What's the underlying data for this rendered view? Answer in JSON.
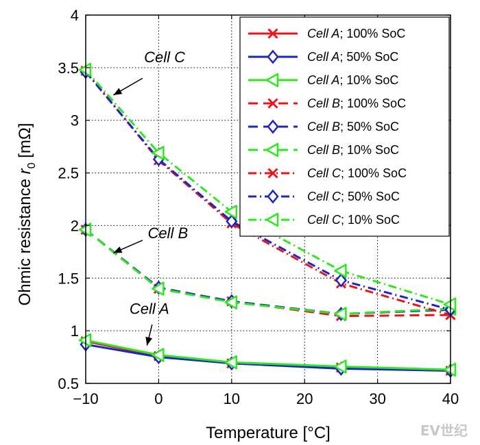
{
  "chart_data": {
    "type": "line",
    "xlabel": "Temperature [°C]",
    "ylabel_main": "Ohmic resistance ",
    "ylabel_var": "r",
    "ylabel_sub": "0",
    "ylabel_unit": " [mΩ]",
    "xlim": [
      -10,
      40
    ],
    "ylim": [
      0.5,
      4
    ],
    "grid": true,
    "x_ticks": [
      -10,
      0,
      10,
      20,
      30,
      40
    ],
    "x_tick_labels": [
      "−10",
      "0",
      "10",
      "20",
      "30",
      "40"
    ],
    "y_ticks": [
      0.5,
      1,
      1.5,
      2,
      2.5,
      3,
      3.5,
      4
    ],
    "y_tick_labels": [
      "0.5",
      "1",
      "1.5",
      "2",
      "2.5",
      "3",
      "3.5",
      "4"
    ],
    "x": [
      -10,
      0,
      10,
      25,
      40
    ],
    "series": [
      {
        "cell": "Cell A",
        "soc": "; 100% SoC",
        "color": "#e8161b",
        "dash": "solid",
        "marker": "x",
        "values": [
          0.9,
          0.76,
          0.69,
          0.65,
          0.62
        ]
      },
      {
        "cell": "Cell A",
        "soc": "; 50% SoC",
        "color": "#1c23c9",
        "dash": "solid",
        "marker": "diamond",
        "values": [
          0.87,
          0.75,
          0.69,
          0.64,
          0.62
        ]
      },
      {
        "cell": "Cell A",
        "soc": "; 10% SoC",
        "color": "#2de81e",
        "dash": "solid",
        "marker": "triangle-left",
        "values": [
          0.91,
          0.77,
          0.7,
          0.66,
          0.63
        ]
      },
      {
        "cell": "Cell B",
        "soc": "; 100% SoC",
        "color": "#e8161b",
        "dash": "dashed",
        "marker": "x",
        "values": [
          1.96,
          1.4,
          1.28,
          1.14,
          1.15
        ]
      },
      {
        "cell": "Cell B",
        "soc": "; 50% SoC",
        "color": "#1c23c9",
        "dash": "dashed",
        "marker": "diamond",
        "values": [
          1.96,
          1.41,
          1.28,
          1.16,
          1.2
        ]
      },
      {
        "cell": "Cell B",
        "soc": "; 10% SoC",
        "color": "#2de81e",
        "dash": "dashed",
        "marker": "triangle-left",
        "values": [
          1.96,
          1.4,
          1.27,
          1.16,
          1.21
        ]
      },
      {
        "cell": "Cell C",
        "soc": "; 100% SoC",
        "color": "#e8161b",
        "dash": "dashdot",
        "marker": "x",
        "values": [
          3.47,
          2.62,
          2.02,
          1.45,
          1.15
        ]
      },
      {
        "cell": "Cell C",
        "soc": "; 50% SoC",
        "color": "#1c23c9",
        "dash": "dashdot",
        "marker": "diamond",
        "values": [
          3.46,
          2.63,
          2.04,
          1.48,
          1.2
        ]
      },
      {
        "cell": "Cell C",
        "soc": "; 10% SoC",
        "color": "#2de81e",
        "dash": "dashdot",
        "marker": "triangle-left",
        "values": [
          3.48,
          2.69,
          2.13,
          1.57,
          1.25
        ]
      }
    ],
    "annotations": [
      {
        "label": "Cell C",
        "text_at": [
          -2,
          3.55
        ],
        "tail": [
          -2.2,
          3.4
        ],
        "head": [
          -6.2,
          3.24
        ]
      },
      {
        "label": "Cell B",
        "text_at": [
          -1.5,
          1.88
        ],
        "tail": [
          -2.2,
          1.86
        ],
        "head": [
          -6.2,
          1.74
        ]
      },
      {
        "label": "Cell A",
        "text_at": [
          -4,
          1.16
        ],
        "tail": [
          -0.9,
          1.06
        ],
        "head": [
          -1.6,
          0.86
        ]
      }
    ],
    "legend_position": "top-right"
  },
  "watermark": "EV世纪"
}
